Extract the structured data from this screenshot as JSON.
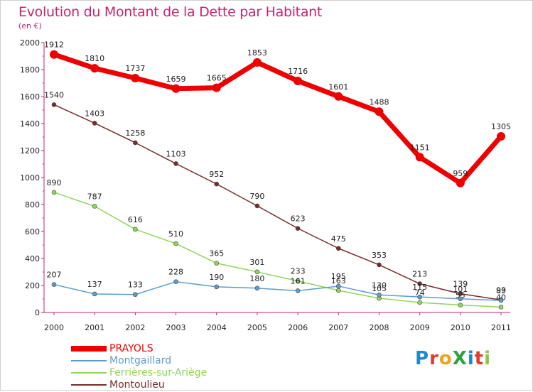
{
  "title": "Evolution du Montant de la Dette par Habitant",
  "subtitle": "(en €)",
  "logo": {
    "text": "ProXiti",
    "letters": [
      "P",
      "r",
      "o",
      "X",
      "i",
      "t",
      "i"
    ],
    "colors": [
      "#1e88d0",
      "#e23b2d",
      "#f2a11c",
      "#2aa33a",
      "#1e88d0",
      "#e23b2d",
      "#8dc63f"
    ]
  },
  "chart_data": {
    "type": "line",
    "title": "Evolution du Montant de la Dette par Habitant",
    "ylabel": "(en €)",
    "xlabel": "",
    "x": [
      "2000",
      "2001",
      "2002",
      "2003",
      "2004",
      "2005",
      "2006",
      "2007",
      "2008",
      "2009",
      "2010",
      "2011"
    ],
    "ylim": [
      0,
      2000
    ],
    "yticks": [
      "0",
      "200",
      "400",
      "600",
      "800",
      "1000",
      "1200",
      "1400",
      "1600",
      "1800",
      "2000"
    ],
    "grid": false,
    "legend_position": "bottom-left",
    "series": [
      {
        "name": "PRAYOLS",
        "color": "#ee0000",
        "values": [
          1912,
          1810,
          1737,
          1659,
          1665,
          1853,
          1716,
          1601,
          1488,
          1151,
          959,
          1305
        ]
      },
      {
        "name": "Montgaillard",
        "color": "#5c9ccf",
        "values": [
          207,
          137,
          133,
          228,
          190,
          180,
          161,
          195,
          130,
          115,
          101,
          89
        ]
      },
      {
        "name": "Ferrières-sur-Ariège",
        "color": "#8ed65c",
        "values": [
          890,
          787,
          616,
          510,
          365,
          301,
          233,
          163,
          105,
          74,
          55,
          40
        ]
      },
      {
        "name": "Montoulieu",
        "color": "#7a2b2b",
        "values": [
          1540,
          1403,
          1258,
          1103,
          952,
          790,
          623,
          475,
          353,
          213,
          139,
          93
        ]
      }
    ]
  }
}
